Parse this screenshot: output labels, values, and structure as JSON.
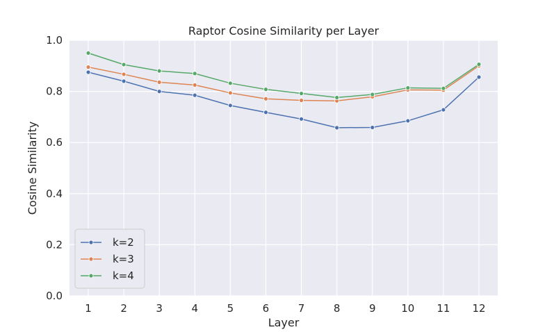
{
  "chart_data": {
    "type": "line",
    "title": "Raptor Cosine Similarity per Layer",
    "xlabel": "Layer",
    "ylabel": "Cosine Similarity",
    "x": [
      1,
      2,
      3,
      4,
      5,
      6,
      7,
      8,
      9,
      10,
      11,
      12
    ],
    "x_tick_labels": [
      "1",
      "2",
      "3",
      "4",
      "5",
      "6",
      "7",
      "8",
      "9",
      "10",
      "11",
      "12"
    ],
    "ylim": [
      0.0,
      1.0
    ],
    "y_ticks": [
      0.0,
      0.2,
      0.4,
      0.6,
      0.8,
      1.0
    ],
    "y_tick_labels": [
      "0.0",
      "0.2",
      "0.4",
      "0.6",
      "0.8",
      "1.0"
    ],
    "grid": true,
    "legend_position": "lower-left",
    "series": [
      {
        "name": "k=2",
        "color": "#4c72b0",
        "values": [
          0.875,
          0.84,
          0.8,
          0.785,
          0.745,
          0.718,
          0.692,
          0.658,
          0.659,
          0.685,
          0.728,
          0.856
        ]
      },
      {
        "name": "k=3",
        "color": "#dd8452",
        "values": [
          0.895,
          0.867,
          0.836,
          0.825,
          0.794,
          0.771,
          0.765,
          0.763,
          0.779,
          0.806,
          0.805,
          0.9
        ]
      },
      {
        "name": "k=4",
        "color": "#55a868",
        "values": [
          0.95,
          0.905,
          0.88,
          0.87,
          0.832,
          0.808,
          0.792,
          0.776,
          0.788,
          0.814,
          0.812,
          0.906
        ]
      }
    ]
  }
}
